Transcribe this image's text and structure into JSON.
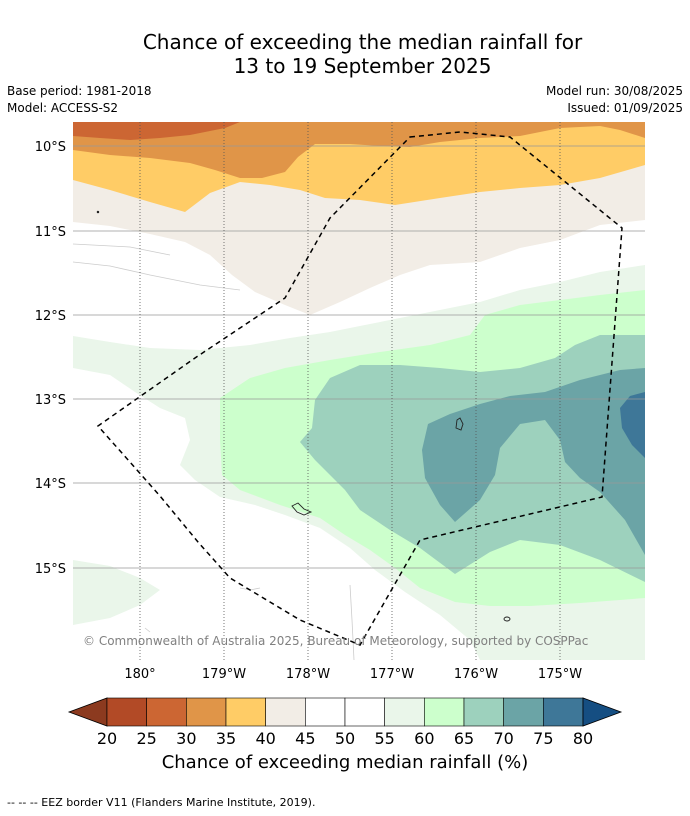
{
  "title_line1": "Chance of exceeding the median rainfall for",
  "title_line2": "13 to 19 September 2025",
  "base_period": "Base period: 1981-2018",
  "model": "Model: ACCESS-S2",
  "model_run": "Model run: 30/08/2025",
  "issued": "Issued: 01/09/2025",
  "copyright": "© Commonwealth of Australia 2025, Bureau of Meteorology, supported by COSPPac",
  "lat_labels": [
    "10°S",
    "11°S",
    "12°S",
    "13°S",
    "14°S",
    "15°S"
  ],
  "lon_labels": [
    "180°",
    "179°W",
    "178°W",
    "177°W",
    "176°W",
    "175°W"
  ],
  "colorbar": {
    "title": "Chance of exceeding median rainfall (%)",
    "ticks": [
      "20",
      "25",
      "30",
      "35",
      "40",
      "45",
      "50",
      "55",
      "60",
      "65",
      "70",
      "75",
      "80"
    ],
    "colors": [
      "#8c3a1f",
      "#b24a26",
      "#cc6633",
      "#e09548",
      "#ffcc66",
      "#f2ede6",
      "#ffffff",
      "#ffffff",
      "#eaf6ea",
      "#ccffcc",
      "#9dd1bd",
      "#6ba4a6",
      "#3e7798",
      "#154e82"
    ]
  },
  "footer": "--  --  -- EEZ border V11 (Flanders Marine Institute, 2019)."
}
